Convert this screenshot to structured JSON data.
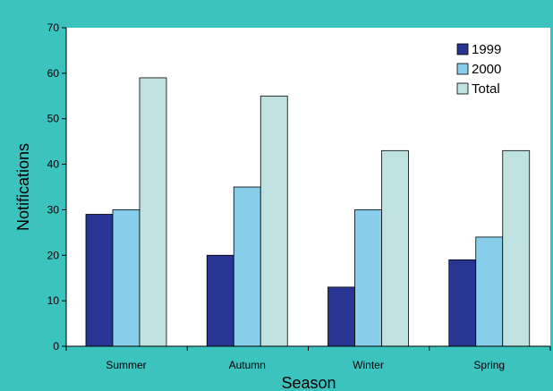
{
  "chart_data": {
    "type": "bar",
    "title": "",
    "xlabel": "Season",
    "ylabel": "Notifications",
    "categories": [
      "Summer",
      "Autumn",
      "Winter",
      "Spring"
    ],
    "series": [
      {
        "name": "1999",
        "values": [
          29,
          20,
          13,
          19
        ],
        "color": "#283593"
      },
      {
        "name": "2000",
        "values": [
          30,
          35,
          30,
          24
        ],
        "color": "#87ceeb"
      },
      {
        "name": "Total",
        "values": [
          59,
          55,
          43,
          43
        ],
        "color": "#bfe2e0"
      }
    ],
    "ylim": [
      0,
      70
    ],
    "yticks": [
      0,
      10,
      20,
      30,
      40,
      50,
      60,
      70
    ],
    "grid": false,
    "legend": "top-right",
    "colors": {
      "background": "#3cc3be",
      "plot_area": "#ffffff"
    }
  }
}
